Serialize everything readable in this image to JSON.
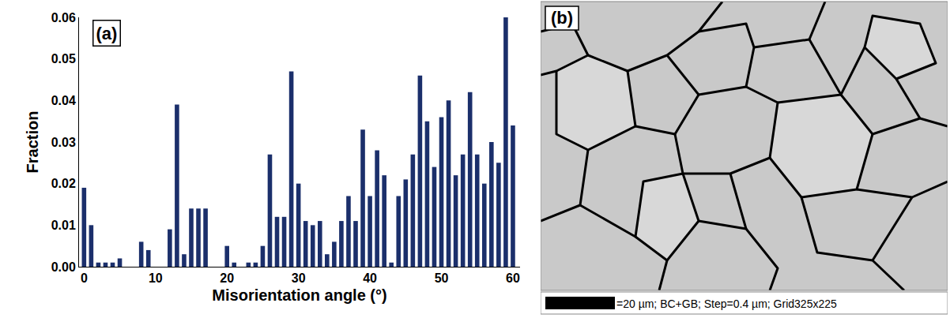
{
  "chart_data": {
    "type": "bar",
    "x_label": "Misorientation angle (°)",
    "y_label": "Fraction",
    "annotations": [
      "(a)"
    ],
    "x": [
      0,
      1,
      2,
      3,
      4,
      5,
      6,
      7,
      8,
      9,
      10,
      11,
      12,
      13,
      14,
      15,
      16,
      17,
      18,
      19,
      20,
      21,
      22,
      23,
      24,
      25,
      26,
      27,
      28,
      29,
      30,
      31,
      32,
      33,
      34,
      35,
      36,
      37,
      38,
      39,
      40,
      41,
      42,
      43,
      44,
      45,
      46,
      47,
      48,
      49,
      50,
      51,
      52,
      53,
      54,
      55,
      56,
      57,
      58,
      59,
      60
    ],
    "values": [
      0.019,
      0.01,
      0.001,
      0.001,
      0.001,
      0.002,
      0,
      0,
      0.006,
      0.004,
      0,
      0,
      0.009,
      0.039,
      0.003,
      0.014,
      0.014,
      0.014,
      0,
      0,
      0.005,
      0.001,
      0,
      0.001,
      0.001,
      0.005,
      0.027,
      0.012,
      0.012,
      0.047,
      0.02,
      0.011,
      0.01,
      0.011,
      0.003,
      0.006,
      0.011,
      0.017,
      0.011,
      0.033,
      0.017,
      0.028,
      0.022,
      0.001,
      0.017,
      0.021,
      0.027,
      0.046,
      0.035,
      0.024,
      0.036,
      0.04,
      0.022,
      0.027,
      0.042,
      0.027,
      0.02,
      0.03,
      0.025,
      0.06,
      0.034
    ],
    "color": "#1b2f6b",
    "xlim": [
      -0.7,
      61
    ],
    "xticks": [
      0,
      10,
      20,
      30,
      40,
      50,
      60
    ],
    "ylim": [
      0,
      0.06
    ],
    "yticks": [
      {
        "value": 0,
        "label": "0.00"
      },
      {
        "value": 0.01,
        "label": "0.01"
      },
      {
        "value": 0.02,
        "label": "0.02"
      },
      {
        "value": 0.03,
        "label": "0.03"
      },
      {
        "value": 0.04,
        "label": "0.04"
      },
      {
        "value": 0.05,
        "label": "0.05"
      },
      {
        "value": 0.06,
        "label": "0.06"
      }
    ],
    "grid": false
  },
  "image_panel": {
    "label": "(b)",
    "caption": "=20 µm; BC+GB; Step=0.4 µm; Grid325x225"
  }
}
